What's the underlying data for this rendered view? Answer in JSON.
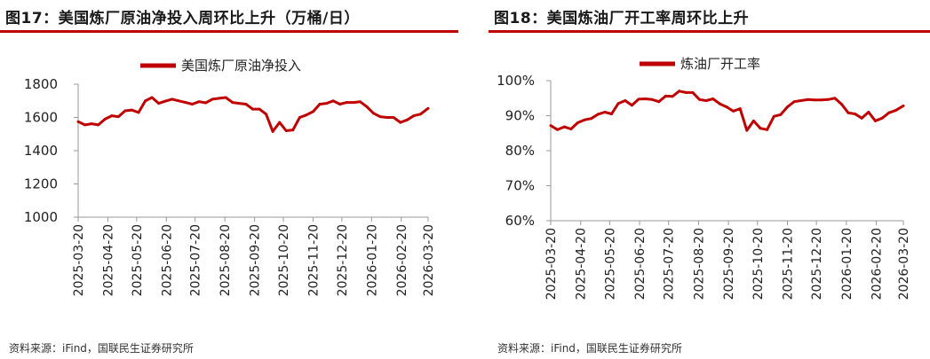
{
  "source_text": "资料来源：iFind，国联民生证券研究所",
  "charts": [
    {
      "title": "图17：美国炼厂原油净投入周环比上升（万桶/日）",
      "source": "资料来源：iFind，国联民生证券研究所",
      "chart_data": {
        "type": "line",
        "legend": "美国炼厂原油净投入",
        "legend_position": "top-center",
        "series_color": "#c00000",
        "ylim": [
          1000,
          1800
        ],
        "yticks": [
          1000,
          1200,
          1400,
          1600,
          1800
        ],
        "ytick_labels": [
          "1000",
          "1200",
          "1400",
          "1600",
          "1800"
        ],
        "x_tick_labels": [
          "2025-03-20",
          "2025-04-20",
          "2025-05-20",
          "2025-06-20",
          "2025-07-20",
          "2025-08-20",
          "2025-09-20",
          "2025-10-20",
          "2025-11-20",
          "2025-12-20",
          "2026-01-20",
          "2026-02-20",
          "2026-03-20"
        ],
        "x_range": [
          "2025-03-20",
          "2026-03-20"
        ],
        "grid": false,
        "x": [
          "2025-03-20",
          "2025-03-27",
          "2025-04-03",
          "2025-04-10",
          "2025-04-17",
          "2025-04-24",
          "2025-05-01",
          "2025-05-08",
          "2025-05-15",
          "2025-05-22",
          "2025-05-29",
          "2025-06-05",
          "2025-06-12",
          "2025-06-19",
          "2025-06-26",
          "2025-07-03",
          "2025-07-10",
          "2025-07-17",
          "2025-07-24",
          "2025-07-31",
          "2025-08-07",
          "2025-08-14",
          "2025-08-21",
          "2025-08-28",
          "2025-09-04",
          "2025-09-11",
          "2025-09-18",
          "2025-09-25",
          "2025-10-02",
          "2025-10-09",
          "2025-10-16",
          "2025-10-23",
          "2025-10-30",
          "2025-11-06",
          "2025-11-13",
          "2025-11-20",
          "2025-11-27",
          "2025-12-04",
          "2025-12-11",
          "2025-12-18",
          "2025-12-25",
          "2026-01-01",
          "2026-01-08",
          "2026-01-15",
          "2026-01-22",
          "2026-01-29",
          "2026-02-05",
          "2026-02-12",
          "2026-02-19",
          "2026-02-26",
          "2026-03-05",
          "2026-03-12",
          "2026-03-20"
        ],
        "values": [
          1575,
          1555,
          1562,
          1555,
          1590,
          1610,
          1605,
          1640,
          1645,
          1630,
          1700,
          1720,
          1685,
          1698,
          1710,
          1700,
          1690,
          1680,
          1695,
          1688,
          1710,
          1715,
          1720,
          1690,
          1685,
          1680,
          1650,
          1650,
          1620,
          1515,
          1570,
          1520,
          1525,
          1600,
          1615,
          1635,
          1680,
          1685,
          1700,
          1680,
          1690,
          1690,
          1695,
          1665,
          1625,
          1605,
          1600,
          1600,
          1570,
          1585,
          1610,
          1620,
          1655
        ]
      }
    },
    {
      "title": "图18：美国炼油厂开工率周环比上升",
      "source": "资料来源：iFind，国联民生证券研究所",
      "chart_data": {
        "type": "line",
        "legend": "炼油厂开工率",
        "legend_position": "top-center",
        "series_color": "#c00000",
        "ylim": [
          60,
          100
        ],
        "yticks": [
          60,
          70,
          80,
          90,
          100
        ],
        "ytick_labels": [
          "60%",
          "70%",
          "80%",
          "90%",
          "100%"
        ],
        "x_tick_labels": [
          "2025-03-20",
          "2025-04-20",
          "2025-05-20",
          "2025-06-20",
          "2025-07-20",
          "2025-08-20",
          "2025-09-20",
          "2025-10-20",
          "2025-11-20",
          "2025-12-20",
          "2026-01-20",
          "2026-02-20",
          "2026-03-20"
        ],
        "x_range": [
          "2025-03-20",
          "2026-03-20"
        ],
        "grid": false,
        "x": [
          "2025-03-20",
          "2025-03-27",
          "2025-04-03",
          "2025-04-10",
          "2025-04-17",
          "2025-04-24",
          "2025-05-01",
          "2025-05-08",
          "2025-05-15",
          "2025-05-22",
          "2025-05-29",
          "2025-06-05",
          "2025-06-12",
          "2025-06-19",
          "2025-06-26",
          "2025-07-03",
          "2025-07-10",
          "2025-07-17",
          "2025-07-24",
          "2025-07-31",
          "2025-08-07",
          "2025-08-14",
          "2025-08-21",
          "2025-08-28",
          "2025-09-04",
          "2025-09-11",
          "2025-09-18",
          "2025-09-25",
          "2025-10-02",
          "2025-10-09",
          "2025-10-16",
          "2025-10-23",
          "2025-10-30",
          "2025-11-06",
          "2025-11-13",
          "2025-11-20",
          "2025-11-27",
          "2025-12-04",
          "2025-12-11",
          "2025-12-18",
          "2025-12-25",
          "2026-01-01",
          "2026-01-08",
          "2026-01-15",
          "2026-01-22",
          "2026-01-29",
          "2026-02-05",
          "2026-02-12",
          "2026-02-19",
          "2026-02-26",
          "2026-03-05",
          "2026-03-12",
          "2026-03-20"
        ],
        "values": [
          87.2,
          86.0,
          86.8,
          86.2,
          88.0,
          88.8,
          89.2,
          90.4,
          91.0,
          90.5,
          93.5,
          94.3,
          93.0,
          94.7,
          94.8,
          94.6,
          94.0,
          95.6,
          95.5,
          97.0,
          96.6,
          96.6,
          94.6,
          94.3,
          94.8,
          93.4,
          92.5,
          91.3,
          92.0,
          85.8,
          88.5,
          86.4,
          86.0,
          89.8,
          90.3,
          92.5,
          94.0,
          94.3,
          94.6,
          94.5,
          94.5,
          94.6,
          95.0,
          93.3,
          90.8,
          90.5,
          89.3,
          91.0,
          88.5,
          89.3,
          90.8,
          91.5,
          92.8
        ]
      }
    }
  ]
}
